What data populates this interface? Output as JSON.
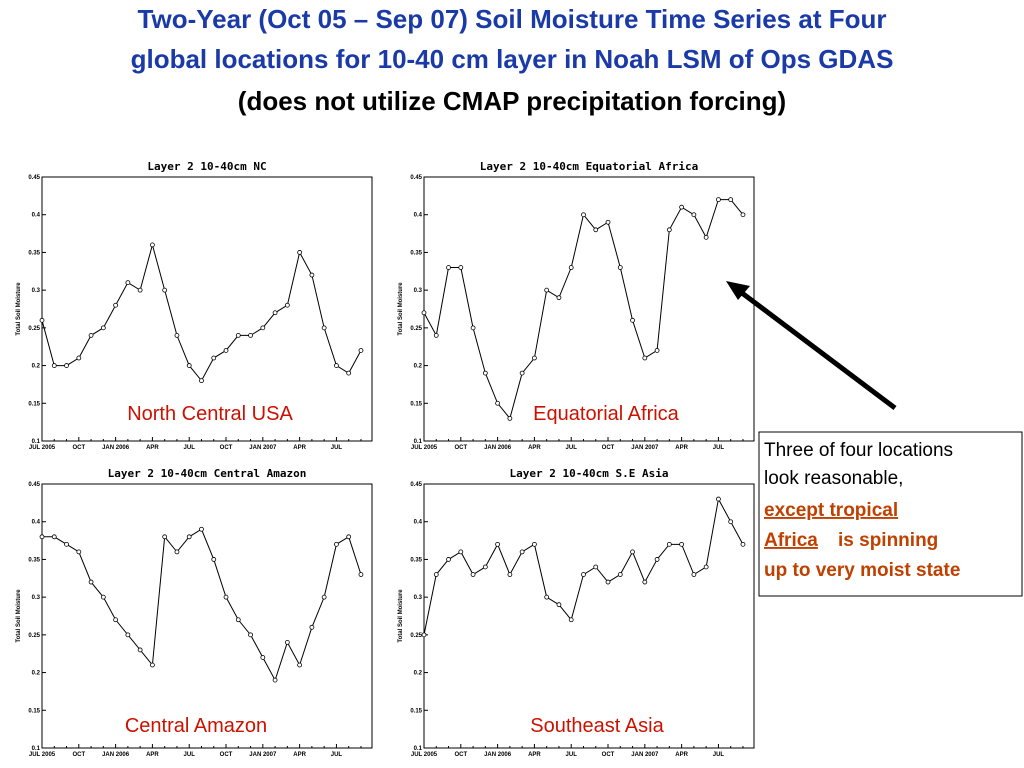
{
  "title": [
    "Two-Year (Oct 05 – Sep 07) Soil Moisture Time Series at Four",
    "global locations for 10-40 cm layer in Noah LSM of Ops GDAS"
  ],
  "subtitle": "(does not utilize CMAP precipitation forcing)",
  "annotation": [
    "Three of four locations",
    "look reasonable,",
    "except tropical",
    "Africa",
    "is spinning",
    "up to very moist state"
  ],
  "chart_data": [
    {
      "type": "line",
      "title": "Layer 2 10-40cm NC",
      "caption": "North Central USA",
      "ylabel": "Total Soil Moisture",
      "categories": [
        "JUL 2005",
        null,
        null,
        "OCT",
        null,
        null,
        "JAN 2006",
        null,
        null,
        "APR",
        null,
        null,
        "JUL",
        null,
        null,
        "OCT",
        null,
        null,
        "JAN 2007",
        null,
        null,
        "APR",
        null,
        null,
        "JUL",
        null,
        null
      ],
      "series": [
        {
          "name": "NC",
          "color": "#000000",
          "values": [
            0.26,
            0.2,
            0.2,
            0.21,
            0.24,
            0.25,
            0.28,
            0.31,
            0.3,
            0.36,
            0.3,
            0.24,
            0.2,
            0.18,
            0.21,
            0.22,
            0.24,
            0.24,
            0.25,
            0.27,
            0.28,
            0.35,
            0.32,
            0.25,
            0.2,
            0.19,
            0.22
          ]
        }
      ],
      "ylim": [
        0.1,
        0.45
      ],
      "yticks": [
        0.1,
        0.15,
        0.2,
        0.25,
        0.3,
        0.35,
        0.4,
        0.45
      ]
    },
    {
      "type": "line",
      "title": "Layer 2 10-40cm Equatorial Africa",
      "caption": "Equatorial Africa",
      "ylabel": "Total Soil Moisture",
      "categories": [
        "JUL 2005",
        null,
        null,
        "OCT",
        null,
        null,
        "JAN 2006",
        null,
        null,
        "APR",
        null,
        null,
        "JUL",
        null,
        null,
        "OCT",
        null,
        null,
        "JAN 2007",
        null,
        null,
        "APR",
        null,
        null,
        "JUL",
        null,
        null
      ],
      "series": [
        {
          "name": "Equatorial Africa",
          "color": "#000000",
          "values": [
            0.27,
            0.24,
            0.33,
            0.33,
            0.25,
            0.19,
            0.15,
            0.13,
            0.19,
            0.21,
            0.3,
            0.29,
            0.33,
            0.4,
            0.38,
            0.39,
            0.33,
            0.26,
            0.21,
            0.22,
            0.38,
            0.41,
            0.4,
            0.37,
            0.42,
            0.42,
            0.4
          ]
        }
      ],
      "ylim": [
        0.1,
        0.45
      ],
      "yticks": [
        0.1,
        0.15,
        0.2,
        0.25,
        0.3,
        0.35,
        0.4,
        0.45
      ]
    },
    {
      "type": "line",
      "title": "Layer 2 10-40cm Central Amazon",
      "caption": "Central Amazon",
      "ylabel": "Total Soil Moisture",
      "categories": [
        "JUL 2005",
        null,
        null,
        "OCT",
        null,
        null,
        "JAN 2006",
        null,
        null,
        "APR",
        null,
        null,
        "JUL",
        null,
        null,
        "OCT",
        null,
        null,
        "JAN 2007",
        null,
        null,
        "APR",
        null,
        null,
        "JUL",
        null,
        null
      ],
      "series": [
        {
          "name": "Central Amazon",
          "color": "#000000",
          "values": [
            0.38,
            0.38,
            0.37,
            0.36,
            0.32,
            0.3,
            0.27,
            0.25,
            0.23,
            0.21,
            0.38,
            0.36,
            0.38,
            0.39,
            0.35,
            0.3,
            0.27,
            0.25,
            0.22,
            0.19,
            0.24,
            0.21,
            0.26,
            0.3,
            0.37,
            0.38,
            0.33
          ]
        }
      ],
      "ylim": [
        0.1,
        0.45
      ],
      "yticks": [
        0.1,
        0.15,
        0.2,
        0.25,
        0.3,
        0.35,
        0.4,
        0.45
      ]
    },
    {
      "type": "line",
      "title": "Layer 2 10-40cm S.E Asia",
      "caption": "Southeast Asia",
      "ylabel": "Total Soil Moisture",
      "categories": [
        "JUL 2005",
        null,
        null,
        "OCT",
        null,
        null,
        "JAN 2006",
        null,
        null,
        "APR",
        null,
        null,
        "JUL",
        null,
        null,
        "OCT",
        null,
        null,
        "JAN 2007",
        null,
        null,
        "APR",
        null,
        null,
        "JUL",
        null,
        null
      ],
      "series": [
        {
          "name": "S.E Asia",
          "color": "#000000",
          "values": [
            0.25,
            0.33,
            0.35,
            0.36,
            0.33,
            0.34,
            0.37,
            0.33,
            0.36,
            0.37,
            0.3,
            0.29,
            0.27,
            0.33,
            0.34,
            0.32,
            0.33,
            0.36,
            0.32,
            0.35,
            0.37,
            0.37,
            0.33,
            0.34,
            0.43,
            0.4,
            0.37
          ]
        }
      ],
      "ylim": [
        0.1,
        0.45
      ],
      "yticks": [
        0.1,
        0.15,
        0.2,
        0.25,
        0.3,
        0.35,
        0.4,
        0.45
      ]
    }
  ]
}
